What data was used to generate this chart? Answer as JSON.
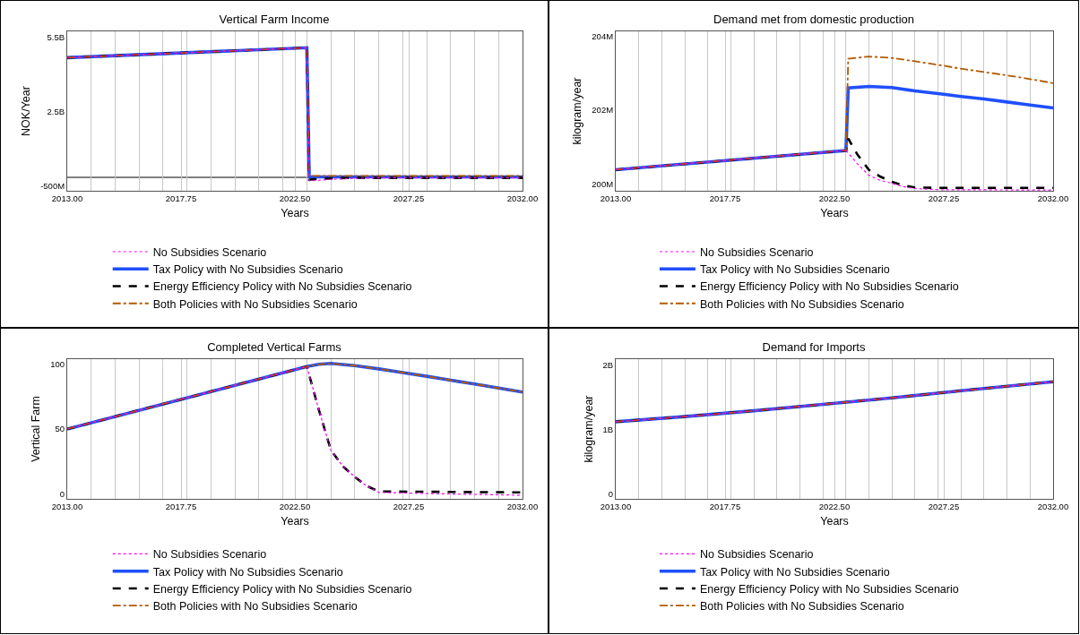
{
  "chart_data": [
    {
      "type": "line",
      "title": "Vertical Farm Income",
      "xlabel": "Years",
      "ylabel": "NOK/Year",
      "xlim": [
        2013,
        2032
      ],
      "xticks": [
        {
          "value": 2013,
          "label": "2013.00"
        },
        {
          "value": 2017.75,
          "label": "2017.75"
        },
        {
          "value": 2022.5,
          "label": "2022.50"
        },
        {
          "value": 2027.25,
          "label": "2027.25"
        },
        {
          "value": 2032,
          "label": "2032.00"
        },
        {
          "value": 2014,
          "label": null
        },
        {
          "value": 2015,
          "label": null
        },
        {
          "value": 2016,
          "label": null
        },
        {
          "value": 2017,
          "label": null
        },
        {
          "value": 2018,
          "label": null
        },
        {
          "value": 2019,
          "label": null
        },
        {
          "value": 2020,
          "label": null
        },
        {
          "value": 2021,
          "label": null
        },
        {
          "value": 2022,
          "label": null
        },
        {
          "value": 2023,
          "label": null
        },
        {
          "value": 2024,
          "label": null
        },
        {
          "value": 2025,
          "label": null
        },
        {
          "value": 2026,
          "label": null
        },
        {
          "value": 2027,
          "label": null
        },
        {
          "value": 2028,
          "label": null
        },
        {
          "value": 2029,
          "label": null
        },
        {
          "value": 2030,
          "label": null
        },
        {
          "value": 2031,
          "label": null
        }
      ],
      "ylim": [
        -690000000,
        5730000000
      ],
      "yticks": [
        {
          "value": 5500000000,
          "label": "5.5B"
        },
        {
          "value": 2500000000,
          "label": "2.5B"
        },
        {
          "value": -500000000,
          "label": "-500M"
        }
      ],
      "grid": "x",
      "legend": "bottom",
      "ref_lines": [
        {
          "axis": "y",
          "value": -150000000,
          "color": "#000000"
        }
      ],
      "series": [
        {
          "name": "No Subsidies Scenario",
          "color": "#ff00ff",
          "line_style": "dotted",
          "x": [
            2013,
            2023,
            2023.1,
            2024,
            2025,
            2026,
            2032
          ],
          "values": [
            4670000000,
            5070000000,
            -290000000,
            -230000000,
            -190000000,
            -170000000,
            -170000000
          ]
        },
        {
          "name": "Tax Policy with No Subsidies Scenario",
          "color": "#1f4fff",
          "line_style": "solid",
          "x": [
            2013,
            2023,
            2023.1,
            2032
          ],
          "values": [
            4670000000,
            5070000000,
            -130000000,
            -130000000
          ]
        },
        {
          "name": "Energy Efficiency Policy with No Subsidies Scenario",
          "color": "#000000",
          "line_style": "dashed",
          "x": [
            2013,
            2023,
            2023.1,
            2024,
            2025,
            2032
          ],
          "values": [
            4670000000,
            5070000000,
            -240000000,
            -190000000,
            -170000000,
            -170000000
          ]
        },
        {
          "name": "Both Policies with No Subsidies Scenario",
          "color": "#b35900",
          "line_style": "dashdot",
          "x": [
            2013,
            2023,
            2023.1,
            2032
          ],
          "values": [
            4670000000,
            5070000000,
            -90000000,
            -90000000
          ]
        }
      ]
    },
    {
      "type": "line",
      "title": "Demand met from domestic production",
      "xlabel": "Years",
      "ylabel": "kilogram/year",
      "xlim": [
        2013,
        2032
      ],
      "xticks": [
        {
          "value": 2013,
          "label": "2013.00"
        },
        {
          "value": 2017.75,
          "label": "2017.75"
        },
        {
          "value": 2022.5,
          "label": "2022.50"
        },
        {
          "value": 2027.25,
          "label": "2027.25"
        },
        {
          "value": 2032,
          "label": "2032.00"
        },
        {
          "value": 2014,
          "label": null
        },
        {
          "value": 2015,
          "label": null
        },
        {
          "value": 2016,
          "label": null
        },
        {
          "value": 2017,
          "label": null
        },
        {
          "value": 2018,
          "label": null
        },
        {
          "value": 2019,
          "label": null
        },
        {
          "value": 2020,
          "label": null
        },
        {
          "value": 2021,
          "label": null
        },
        {
          "value": 2022,
          "label": null
        },
        {
          "value": 2023,
          "label": null
        },
        {
          "value": 2024,
          "label": null
        },
        {
          "value": 2025,
          "label": null
        },
        {
          "value": 2026,
          "label": null
        },
        {
          "value": 2027,
          "label": null
        },
        {
          "value": 2028,
          "label": null
        },
        {
          "value": 2029,
          "label": null
        },
        {
          "value": 2030,
          "label": null
        },
        {
          "value": 2031,
          "label": null
        }
      ],
      "ylim": [
        199820000,
        204130000
      ],
      "yticks": [
        {
          "value": 204000000,
          "label": "204M"
        },
        {
          "value": 202000000,
          "label": "202M"
        },
        {
          "value": 200000000,
          "label": "200M"
        }
      ],
      "grid": "x",
      "legend": "bottom",
      "series": [
        {
          "name": "No Subsidies Scenario",
          "color": "#ff00ff",
          "line_style": "dotted",
          "x": [
            2013,
            2023,
            2023.5,
            2024,
            2024.5,
            2025,
            2025.5,
            2026,
            2027,
            2032
          ],
          "values": [
            200390000,
            200910000,
            200550000,
            200240000,
            200100000,
            200020000,
            199930000,
            199880000,
            199850000,
            199840000
          ]
        },
        {
          "name": "Tax Policy with No Subsidies Scenario",
          "color": "#1f4fff",
          "line_style": "solid",
          "x": [
            2013,
            2023,
            2023.1,
            2024,
            2025,
            2026,
            2027.25,
            2028,
            2029,
            2030,
            2031,
            2032
          ],
          "values": [
            200390000,
            200910000,
            202600000,
            202640000,
            202610000,
            202520000,
            202430000,
            202370000,
            202300000,
            202220000,
            202140000,
            202060000
          ]
        },
        {
          "name": "Energy Efficiency Policy with No Subsidies Scenario",
          "color": "#000000",
          "line_style": "dashed",
          "x": [
            2013,
            2023,
            2023.1,
            2023.5,
            2024,
            2024.5,
            2025,
            2025.5,
            2026,
            2027,
            2032
          ],
          "values": [
            200390000,
            200910000,
            201230000,
            200800000,
            200380000,
            200200000,
            200060000,
            199960000,
            199910000,
            199900000,
            199900000
          ]
        },
        {
          "name": "Both Policies with No Subsidies Scenario",
          "color": "#b35900",
          "line_style": "dashdot",
          "x": [
            2013,
            2023,
            2023.1,
            2024,
            2025,
            2026,
            2027.25,
            2028,
            2029,
            2030,
            2031,
            2032
          ],
          "values": [
            200390000,
            200910000,
            203390000,
            203450000,
            203410000,
            203320000,
            203200000,
            203120000,
            203030000,
            202940000,
            202840000,
            202730000
          ]
        }
      ]
    },
    {
      "type": "line",
      "title": "Completed Vertical Farms",
      "xlabel": "Years",
      "ylabel": "Vertical Farm",
      "xlim": [
        2013,
        2032
      ],
      "xticks": [
        {
          "value": 2013,
          "label": "2013.00"
        },
        {
          "value": 2017.75,
          "label": "2017.75"
        },
        {
          "value": 2022.5,
          "label": "2022.50"
        },
        {
          "value": 2027.25,
          "label": "2027.25"
        },
        {
          "value": 2032,
          "label": "2032.00"
        },
        {
          "value": 2014,
          "label": null
        },
        {
          "value": 2015,
          "label": null
        },
        {
          "value": 2016,
          "label": null
        },
        {
          "value": 2017,
          "label": null
        },
        {
          "value": 2018,
          "label": null
        },
        {
          "value": 2019,
          "label": null
        },
        {
          "value": 2020,
          "label": null
        },
        {
          "value": 2021,
          "label": null
        },
        {
          "value": 2022,
          "label": null
        },
        {
          "value": 2023,
          "label": null
        },
        {
          "value": 2024,
          "label": null
        },
        {
          "value": 2025,
          "label": null
        },
        {
          "value": 2026,
          "label": null
        },
        {
          "value": 2027,
          "label": null
        },
        {
          "value": 2028,
          "label": null
        },
        {
          "value": 2029,
          "label": null
        },
        {
          "value": 2030,
          "label": null
        },
        {
          "value": 2031,
          "label": null
        }
      ],
      "ylim": [
        -3.8,
        103.8
      ],
      "yticks": [
        0,
        50,
        100
      ],
      "grid": "x",
      "legend": "bottom",
      "series": [
        {
          "name": "No Subsidies Scenario",
          "color": "#ff00ff",
          "line_style": "dotted",
          "x": [
            2013,
            2023,
            2023.5,
            2024,
            2024.5,
            2025,
            2025.5,
            2026,
            2028,
            2032
          ],
          "values": [
            50,
            98.1,
            64.8,
            33.8,
            21.4,
            13.1,
            6.1,
            1.2,
            0.3,
            -1
          ]
        },
        {
          "name": "Tax Policy with No Subsidies Scenario",
          "color": "#1f4fff",
          "line_style": "solid",
          "x": [
            2013,
            2023,
            2023.5,
            2024,
            2025,
            2026,
            2027,
            2028,
            2029,
            2030,
            2031,
            2032
          ],
          "values": [
            50,
            98.1,
            99.8,
            100.5,
            98.8,
            96.3,
            93.5,
            90.6,
            87.6,
            84.6,
            81.5,
            78.4
          ]
        },
        {
          "name": "Energy Efficiency Policy with No Subsidies Scenario",
          "color": "#000000",
          "line_style": "dashed",
          "x": [
            2013,
            2023,
            2023.5,
            2024,
            2024.5,
            2025,
            2025.5,
            2026,
            2032
          ],
          "values": [
            50,
            98.1,
            64.8,
            33.8,
            21.4,
            13.1,
            6.1,
            1.9,
            1.2
          ]
        },
        {
          "name": "Both Policies with No Subsidies Scenario",
          "color": "#b35900",
          "line_style": "dashdot",
          "x": [
            2013,
            2023,
            2023.5,
            2024,
            2025,
            2026,
            2027,
            2028,
            2029,
            2030,
            2031,
            2032
          ],
          "values": [
            50,
            98.1,
            99.8,
            100.5,
            98.8,
            96.3,
            93.5,
            90.6,
            87.6,
            84.6,
            81.5,
            78.4
          ]
        }
      ]
    },
    {
      "type": "line",
      "title": "Demand for Imports",
      "xlabel": "Years",
      "ylabel": "kilogram/year",
      "xlim": [
        2013,
        2032
      ],
      "xticks": [
        {
          "value": 2013,
          "label": "2013.00"
        },
        {
          "value": 2017.75,
          "label": "2017.75"
        },
        {
          "value": 2022.5,
          "label": "2022.50"
        },
        {
          "value": 2027.25,
          "label": "2027.25"
        },
        {
          "value": 2032,
          "label": "2032.00"
        },
        {
          "value": 2014,
          "label": null
        },
        {
          "value": 2015,
          "label": null
        },
        {
          "value": 2016,
          "label": null
        },
        {
          "value": 2017,
          "label": null
        },
        {
          "value": 2018,
          "label": null
        },
        {
          "value": 2019,
          "label": null
        },
        {
          "value": 2020,
          "label": null
        },
        {
          "value": 2021,
          "label": null
        },
        {
          "value": 2022,
          "label": null
        },
        {
          "value": 2023,
          "label": null
        },
        {
          "value": 2024,
          "label": null
        },
        {
          "value": 2025,
          "label": null
        },
        {
          "value": 2026,
          "label": null
        },
        {
          "value": 2027,
          "label": null
        },
        {
          "value": 2028,
          "label": null
        },
        {
          "value": 2029,
          "label": null
        },
        {
          "value": 2030,
          "label": null
        },
        {
          "value": 2031,
          "label": null
        }
      ],
      "ylim": [
        -75000000,
        2090000000
      ],
      "yticks": [
        {
          "value": 2000000000,
          "label": "2B"
        },
        {
          "value": 1000000000,
          "label": "1B"
        },
        {
          "value": 0,
          "label": "0"
        }
      ],
      "grid": "x",
      "legend": "bottom",
      "series": [
        {
          "name": "No Subsidies Scenario",
          "color": "#ff00ff",
          "line_style": "dotted",
          "x": [
            2013,
            2016,
            2019,
            2022,
            2025,
            2028,
            2032
          ],
          "values": [
            1120000000,
            1200000000,
            1290000000,
            1390000000,
            1490000000,
            1600000000,
            1740000000
          ]
        },
        {
          "name": "Tax Policy with No Subsidies Scenario",
          "color": "#1f4fff",
          "line_style": "solid",
          "x": [
            2013,
            2016,
            2019,
            2022,
            2025,
            2028,
            2032
          ],
          "values": [
            1120000000,
            1200000000,
            1290000000,
            1390000000,
            1490000000,
            1600000000,
            1740000000
          ]
        },
        {
          "name": "Energy Efficiency Policy with No Subsidies Scenario",
          "color": "#000000",
          "line_style": "dashed",
          "x": [
            2013,
            2016,
            2019,
            2022,
            2025,
            2028,
            2032
          ],
          "values": [
            1120000000,
            1200000000,
            1290000000,
            1390000000,
            1490000000,
            1600000000,
            1740000000
          ]
        },
        {
          "name": "Both Policies with No Subsidies Scenario",
          "color": "#b35900",
          "line_style": "dashdot",
          "x": [
            2013,
            2016,
            2019,
            2022,
            2025,
            2028,
            2032
          ],
          "values": [
            1120000000,
            1200000000,
            1290000000,
            1390000000,
            1490000000,
            1600000000,
            1740000000
          ]
        }
      ]
    }
  ]
}
